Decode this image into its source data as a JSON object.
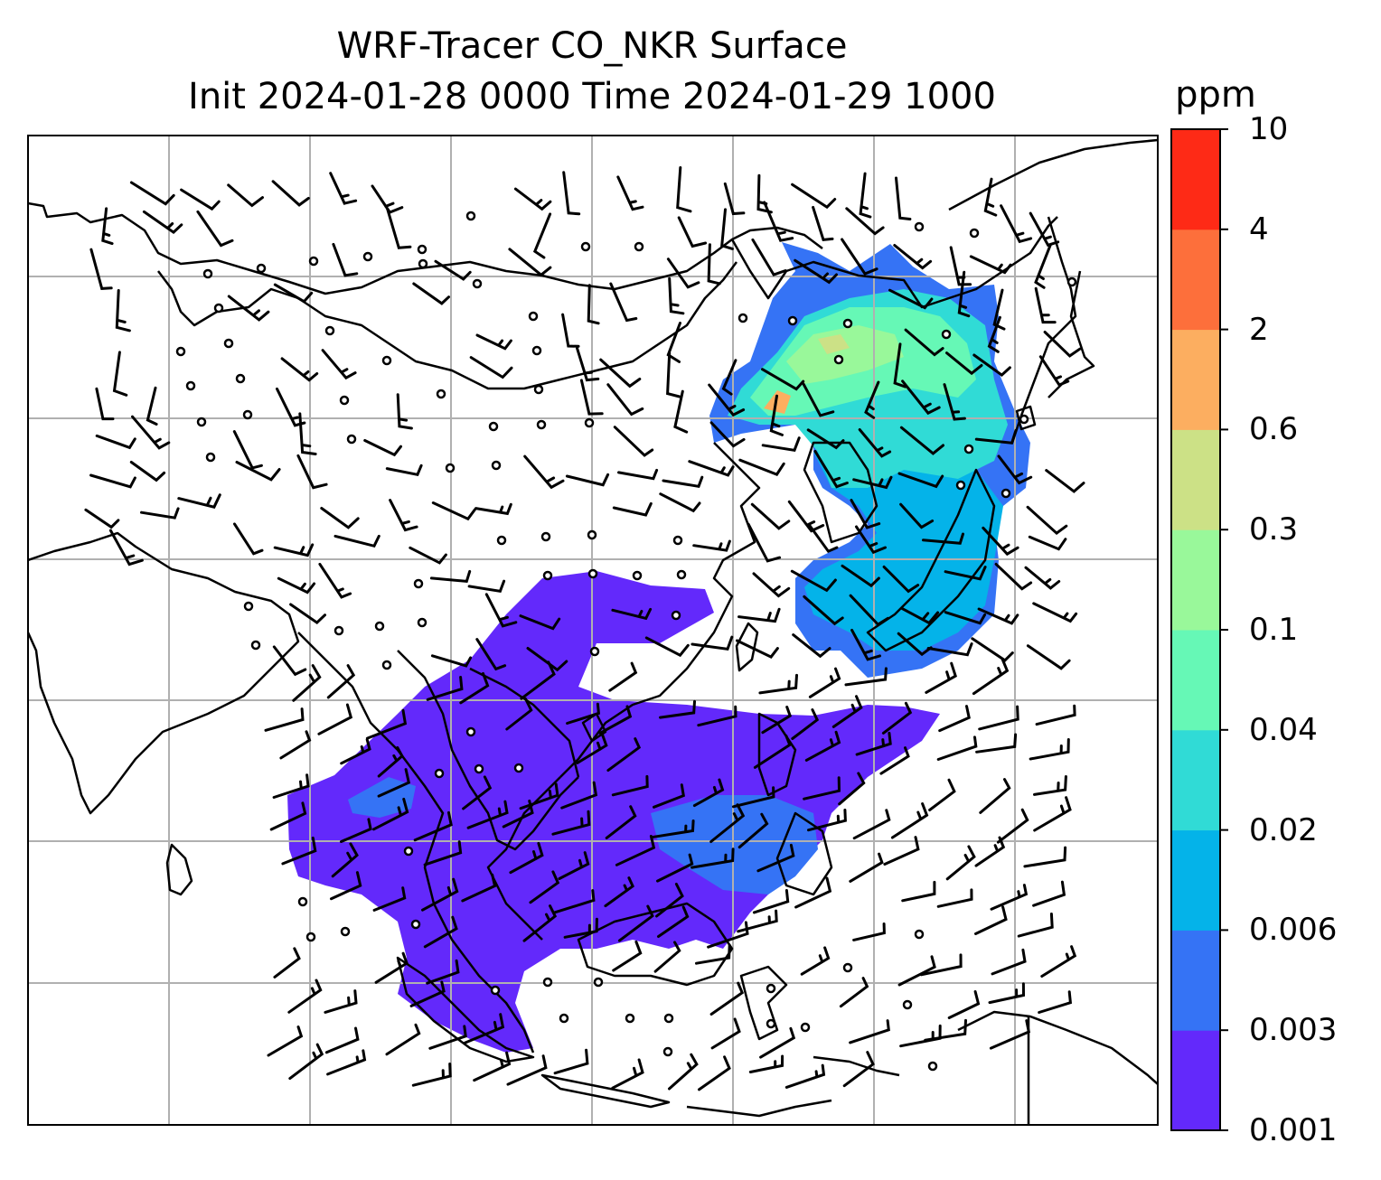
{
  "title": {
    "line1": "WRF-Tracer CO_NKR Surface",
    "line2": "Init 2024-01-28 0000 Time 2024-01-29 1000"
  },
  "colorbar": {
    "units": "ppm",
    "levels": [
      "0.001",
      "0.003",
      "0.006",
      "0.02",
      "0.04",
      "0.1",
      "0.3",
      "0.6",
      "2",
      "4",
      "10"
    ],
    "colors": [
      "#6329fb",
      "#3573f5",
      "#04b3e9",
      "#30dbd6",
      "#66f8b6",
      "#99f89a",
      "#cce186",
      "#fcae60",
      "#fd6f3b",
      "#fe2a16"
    ]
  },
  "map": {
    "background": "#ffffff",
    "gridlines": true,
    "gridline_color": "#b0b0b0",
    "coastline_color": "#000000",
    "overlay": "wind-barbs"
  }
}
